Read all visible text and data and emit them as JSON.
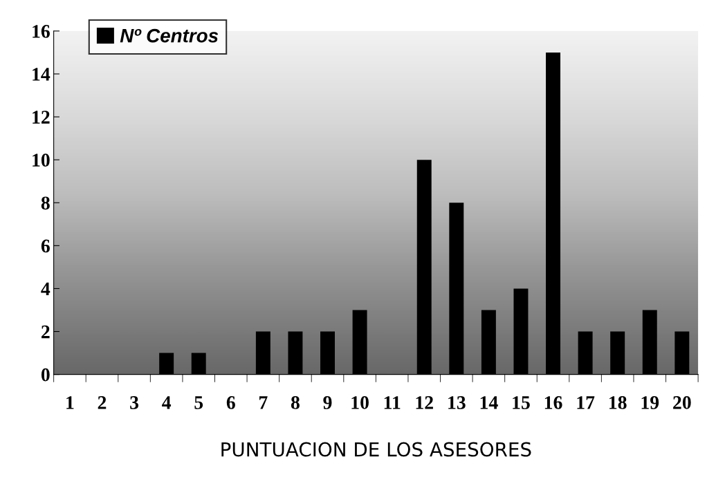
{
  "chart_data": {
    "type": "bar",
    "xlabel": "PUNTUACION DE LOS ASESORES",
    "categories": [
      "1",
      "2",
      "3",
      "4",
      "5",
      "6",
      "7",
      "8",
      "9",
      "10",
      "11",
      "12",
      "13",
      "14",
      "15",
      "16",
      "17",
      "18",
      "19",
      "20"
    ],
    "series": [
      {
        "name": "Nº Centros",
        "color": "#000000",
        "values": [
          0,
          0,
          0,
          1,
          1,
          0,
          2,
          2,
          2,
          3,
          0,
          10,
          8,
          3,
          4,
          15,
          2,
          2,
          3,
          2
        ]
      }
    ],
    "ylim": [
      0,
      16
    ],
    "yticks": [
      0,
      2,
      4,
      6,
      8,
      10,
      12,
      14,
      16
    ],
    "grid": false,
    "legend": "top left"
  }
}
